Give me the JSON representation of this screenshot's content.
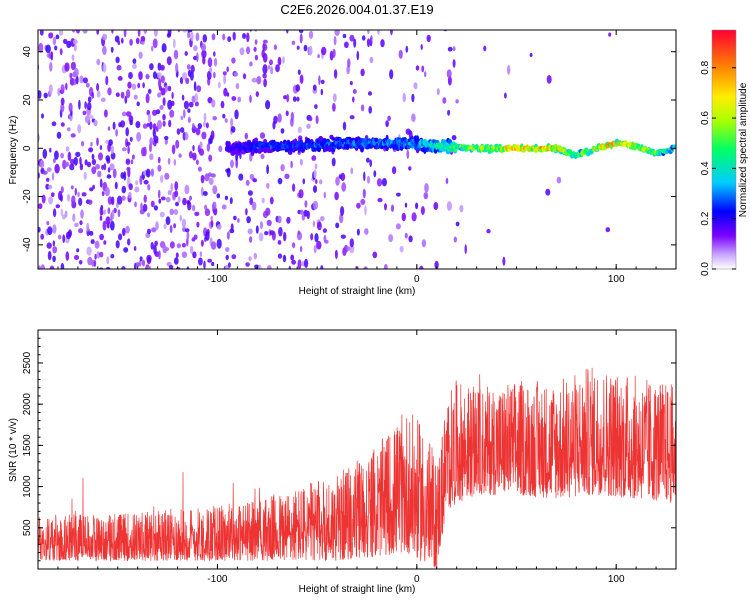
{
  "chart_data": [
    {
      "type": "heatmap",
      "title": "C2E6.2026.004.01.37.E19",
      "xlabel": "Height of straight line (km)",
      "ylabel": "Frequency (Hz)",
      "xlim": [
        -190,
        130
      ],
      "ylim": [
        -50,
        49
      ],
      "xticks": [
        -100,
        0,
        100
      ],
      "yticks": [
        -40,
        -20,
        0,
        20,
        40
      ],
      "colorbar": {
        "label": "Normalized spectral amplitude",
        "range": [
          0,
          0.95
        ],
        "ticks": [
          0.0,
          0.2,
          0.4,
          0.6,
          0.8
        ]
      },
      "ridge": {
        "description_points_x": [
          -90,
          -80,
          -60,
          -40,
          -20,
          0,
          10,
          30,
          50,
          70,
          80,
          90,
          100,
          110,
          120,
          130
        ],
        "frequency_hz": [
          0,
          1,
          1,
          2,
          2,
          2,
          1,
          0,
          0,
          0,
          -3,
          0,
          2,
          1,
          -2,
          0
        ],
        "amplitude": [
          0.25,
          0.3,
          0.3,
          0.35,
          0.35,
          0.4,
          0.5,
          0.7,
          0.9,
          0.9,
          0.6,
          0.8,
          0.9,
          0.8,
          0.6,
          0.5
        ]
      }
    },
    {
      "type": "line",
      "xlabel": "Height of straight line (km)",
      "ylabel": "SNR (10 * v/v)",
      "xlim": [
        -190,
        130
      ],
      "ylim": [
        0,
        2900
      ],
      "xticks": [
        -100,
        0,
        100
      ],
      "yticks": [
        500,
        1000,
        1500,
        2000,
        2500
      ],
      "color": "#ee3333",
      "envelope": {
        "x": [
          -190,
          -150,
          -100,
          -80,
          -60,
          -40,
          -20,
          -5,
          5,
          10,
          15,
          20,
          30,
          50,
          70,
          90,
          110,
          130
        ],
        "low": [
          100,
          100,
          100,
          100,
          100,
          100,
          150,
          200,
          50,
          0,
          700,
          800,
          900,
          900,
          850,
          900,
          850,
          800
        ],
        "high": [
          650,
          680,
          780,
          850,
          1000,
          1150,
          1500,
          1950,
          1700,
          1300,
          2100,
          2300,
          2200,
          2300,
          2300,
          2500,
          2350,
          2250
        ]
      }
    }
  ]
}
